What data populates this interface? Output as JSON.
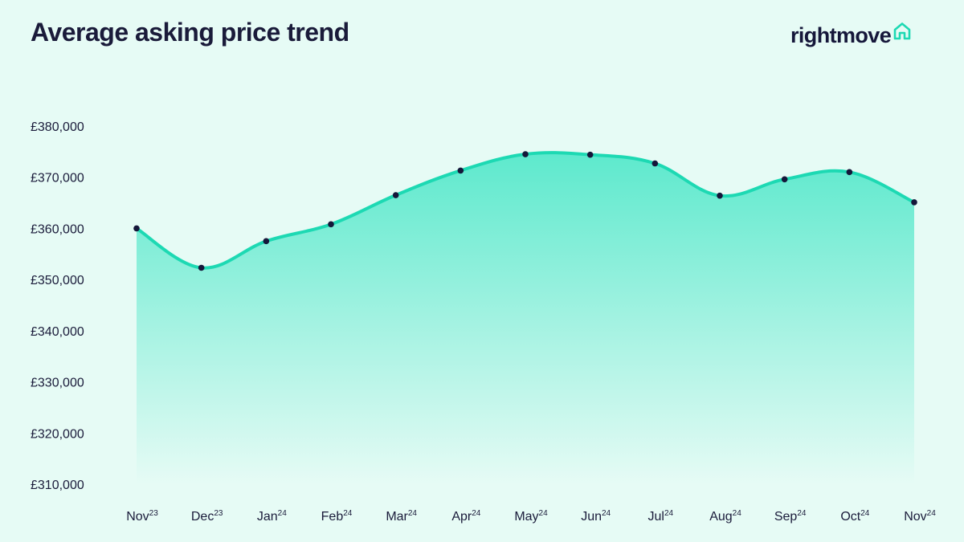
{
  "header": {
    "title": "Average asking price trend",
    "logo_text": "rightmove"
  },
  "colors": {
    "background": "#e6fbf5",
    "line": "#1dd9b3",
    "fill_top": "#5de9cd",
    "fill_bottom": "#e6fbf5",
    "marker": "#15173a",
    "text": "#1a1b3a"
  },
  "chart_data": {
    "type": "area",
    "title": "Average asking price trend",
    "xlabel": "",
    "ylabel": "",
    "categories": [
      {
        "month": "Nov",
        "year": "23"
      },
      {
        "month": "Dec",
        "year": "23"
      },
      {
        "month": "Jan",
        "year": "24"
      },
      {
        "month": "Feb",
        "year": "24"
      },
      {
        "month": "Mar",
        "year": "24"
      },
      {
        "month": "Apr",
        "year": "24"
      },
      {
        "month": "May",
        "year": "24"
      },
      {
        "month": "Jun",
        "year": "24"
      },
      {
        "month": "Jul",
        "year": "24"
      },
      {
        "month": "Aug",
        "year": "24"
      },
      {
        "month": "Sep",
        "year": "24"
      },
      {
        "month": "Oct",
        "year": "24"
      },
      {
        "month": "Nov",
        "year": "24"
      }
    ],
    "values": [
      360000,
      352300,
      357500,
      360800,
      366500,
      371300,
      374500,
      374400,
      372700,
      366400,
      369600,
      371000,
      365100
    ],
    "ylim": [
      310000,
      380000
    ],
    "yticks": [
      "£310,000",
      "£320,000",
      "£330,000",
      "£340,000",
      "£350,000",
      "£360,000",
      "£370,000",
      "£380,000"
    ],
    "ytick_values": [
      310000,
      320000,
      330000,
      340000,
      350000,
      360000,
      370000,
      380000
    ],
    "grid": false,
    "legend": "none",
    "smooth": true,
    "markers": true
  }
}
